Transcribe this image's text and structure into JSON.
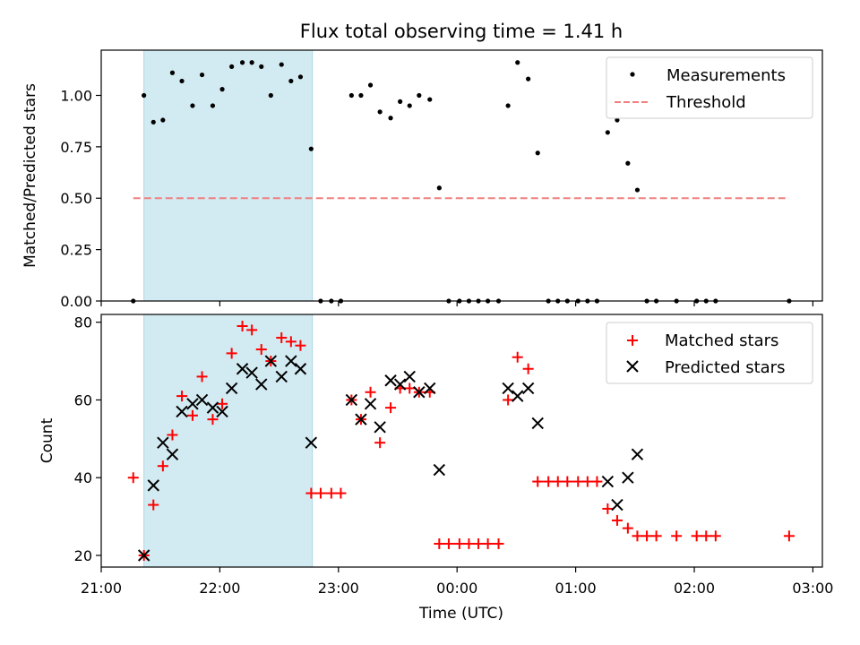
{
  "chart_data": [
    {
      "type": "scatter",
      "title": "Flux total observing time = 1.41 h",
      "xlabel": "",
      "ylabel": "Matched/Predicted stars",
      "x_unit": "hours since 21:00 UTC",
      "xlim": [
        21.0,
        27.08
      ],
      "ylim": [
        0.0,
        1.22
      ],
      "yticks": [
        "0.00",
        "0.25",
        "0.50",
        "0.75",
        "1.00"
      ],
      "shaded_interval": [
        21.36,
        22.78
      ],
      "shade_color": "#add8e6",
      "legend_position": "upper-right",
      "series": [
        {
          "name": "Measurements",
          "marker": "dot",
          "color": "#000000",
          "points": [
            [
              21.27,
              0.0
            ],
            [
              21.36,
              1.0
            ],
            [
              21.44,
              0.87
            ],
            [
              21.52,
              0.88
            ],
            [
              21.6,
              1.11
            ],
            [
              21.68,
              1.07
            ],
            [
              21.77,
              0.95
            ],
            [
              21.85,
              1.1
            ],
            [
              21.94,
              0.95
            ],
            [
              22.02,
              1.03
            ],
            [
              22.1,
              1.14
            ],
            [
              22.19,
              1.16
            ],
            [
              22.27,
              1.16
            ],
            [
              22.35,
              1.14
            ],
            [
              22.43,
              1.0
            ],
            [
              22.52,
              1.15
            ],
            [
              22.6,
              1.07
            ],
            [
              22.68,
              1.09
            ],
            [
              22.77,
              0.74
            ],
            [
              22.85,
              0.0
            ],
            [
              22.94,
              0.0
            ],
            [
              23.02,
              0.0
            ],
            [
              23.11,
              1.0
            ],
            [
              23.19,
              1.0
            ],
            [
              23.27,
              1.05
            ],
            [
              23.35,
              0.92
            ],
            [
              23.44,
              0.89
            ],
            [
              23.52,
              0.97
            ],
            [
              23.6,
              0.95
            ],
            [
              23.68,
              1.0
            ],
            [
              23.77,
              0.98
            ],
            [
              23.85,
              0.55
            ],
            [
              23.93,
              0.0
            ],
            [
              24.02,
              0.0
            ],
            [
              24.1,
              0.0
            ],
            [
              24.18,
              0.0
            ],
            [
              24.26,
              0.0
            ],
            [
              24.35,
              0.0
            ],
            [
              24.43,
              0.95
            ],
            [
              24.51,
              1.16
            ],
            [
              24.6,
              1.08
            ],
            [
              24.68,
              0.72
            ],
            [
              24.77,
              0.0
            ],
            [
              24.85,
              0.0
            ],
            [
              24.93,
              0.0
            ],
            [
              25.02,
              0.0
            ],
            [
              25.1,
              0.0
            ],
            [
              25.18,
              0.0
            ],
            [
              25.27,
              0.82
            ],
            [
              25.35,
              0.88
            ],
            [
              25.44,
              0.67
            ],
            [
              25.52,
              0.54
            ],
            [
              25.6,
              0.0
            ],
            [
              25.68,
              0.0
            ],
            [
              25.85,
              0.0
            ],
            [
              26.02,
              0.0
            ],
            [
              26.1,
              0.0
            ],
            [
              26.18,
              0.0
            ],
            [
              26.8,
              0.0
            ]
          ]
        },
        {
          "name": "Threshold",
          "type": "line",
          "style": "dashed",
          "color": "#f08080",
          "points": [
            [
              21.27,
              0.5
            ],
            [
              26.8,
              0.5
            ]
          ]
        }
      ]
    },
    {
      "type": "scatter",
      "title": "",
      "xlabel": "Time (UTC)",
      "ylabel": "Count",
      "x_unit": "hours since 21:00 UTC",
      "xlim": [
        21.0,
        27.08
      ],
      "ylim": [
        17,
        82
      ],
      "yticks": [
        "20",
        "40",
        "60",
        "80"
      ],
      "xticks": [
        "21:00",
        "22:00",
        "23:00",
        "00:00",
        "01:00",
        "02:00",
        "03:00"
      ],
      "shaded_interval": [
        21.36,
        22.78
      ],
      "shade_color": "#add8e6",
      "legend_position": "upper-right",
      "series": [
        {
          "name": "Matched stars",
          "marker": "plus",
          "color": "#ff0000",
          "points": [
            [
              21.27,
              40
            ],
            [
              21.36,
              20
            ],
            [
              21.44,
              33
            ],
            [
              21.52,
              43
            ],
            [
              21.6,
              51
            ],
            [
              21.68,
              61
            ],
            [
              21.77,
              56
            ],
            [
              21.85,
              66
            ],
            [
              21.94,
              55
            ],
            [
              22.02,
              59
            ],
            [
              22.1,
              72
            ],
            [
              22.19,
              79
            ],
            [
              22.27,
              78
            ],
            [
              22.35,
              73
            ],
            [
              22.43,
              70
            ],
            [
              22.52,
              76
            ],
            [
              22.6,
              75
            ],
            [
              22.68,
              74
            ],
            [
              22.77,
              36
            ],
            [
              22.85,
              36
            ],
            [
              22.94,
              36
            ],
            [
              23.02,
              36
            ],
            [
              23.11,
              60
            ],
            [
              23.19,
              55
            ],
            [
              23.27,
              62
            ],
            [
              23.35,
              49
            ],
            [
              23.44,
              58
            ],
            [
              23.52,
              63
            ],
            [
              23.6,
              63
            ],
            [
              23.68,
              62
            ],
            [
              23.77,
              62
            ],
            [
              23.85,
              23
            ],
            [
              23.93,
              23
            ],
            [
              24.02,
              23
            ],
            [
              24.1,
              23
            ],
            [
              24.18,
              23
            ],
            [
              24.26,
              23
            ],
            [
              24.35,
              23
            ],
            [
              24.43,
              60
            ],
            [
              24.51,
              71
            ],
            [
              24.6,
              68
            ],
            [
              24.68,
              39
            ],
            [
              24.77,
              39
            ],
            [
              24.85,
              39
            ],
            [
              24.93,
              39
            ],
            [
              25.02,
              39
            ],
            [
              25.1,
              39
            ],
            [
              25.18,
              39
            ],
            [
              25.27,
              32
            ],
            [
              25.35,
              29
            ],
            [
              25.44,
              27
            ],
            [
              25.52,
              25
            ],
            [
              25.6,
              25
            ],
            [
              25.68,
              25
            ],
            [
              25.85,
              25
            ],
            [
              26.02,
              25
            ],
            [
              26.1,
              25
            ],
            [
              26.18,
              25
            ],
            [
              26.8,
              25
            ]
          ]
        },
        {
          "name": "Predicted stars",
          "marker": "x",
          "color": "#000000",
          "points": [
            [
              21.36,
              20
            ],
            [
              21.44,
              38
            ],
            [
              21.52,
              49
            ],
            [
              21.6,
              46
            ],
            [
              21.68,
              57
            ],
            [
              21.77,
              59
            ],
            [
              21.85,
              60
            ],
            [
              21.94,
              58
            ],
            [
              22.02,
              57
            ],
            [
              22.1,
              63
            ],
            [
              22.19,
              68
            ],
            [
              22.27,
              67
            ],
            [
              22.35,
              64
            ],
            [
              22.43,
              70
            ],
            [
              22.52,
              66
            ],
            [
              22.6,
              70
            ],
            [
              22.68,
              68
            ],
            [
              22.77,
              49
            ],
            [
              23.11,
              60
            ],
            [
              23.19,
              55
            ],
            [
              23.27,
              59
            ],
            [
              23.35,
              53
            ],
            [
              23.44,
              65
            ],
            [
              23.52,
              64
            ],
            [
              23.6,
              66
            ],
            [
              23.68,
              62
            ],
            [
              23.77,
              63
            ],
            [
              23.85,
              42
            ],
            [
              24.43,
              63
            ],
            [
              24.51,
              61
            ],
            [
              24.6,
              63
            ],
            [
              24.68,
              54
            ],
            [
              25.27,
              39
            ],
            [
              25.35,
              33
            ],
            [
              25.44,
              40
            ],
            [
              25.52,
              46
            ]
          ]
        }
      ]
    }
  ]
}
